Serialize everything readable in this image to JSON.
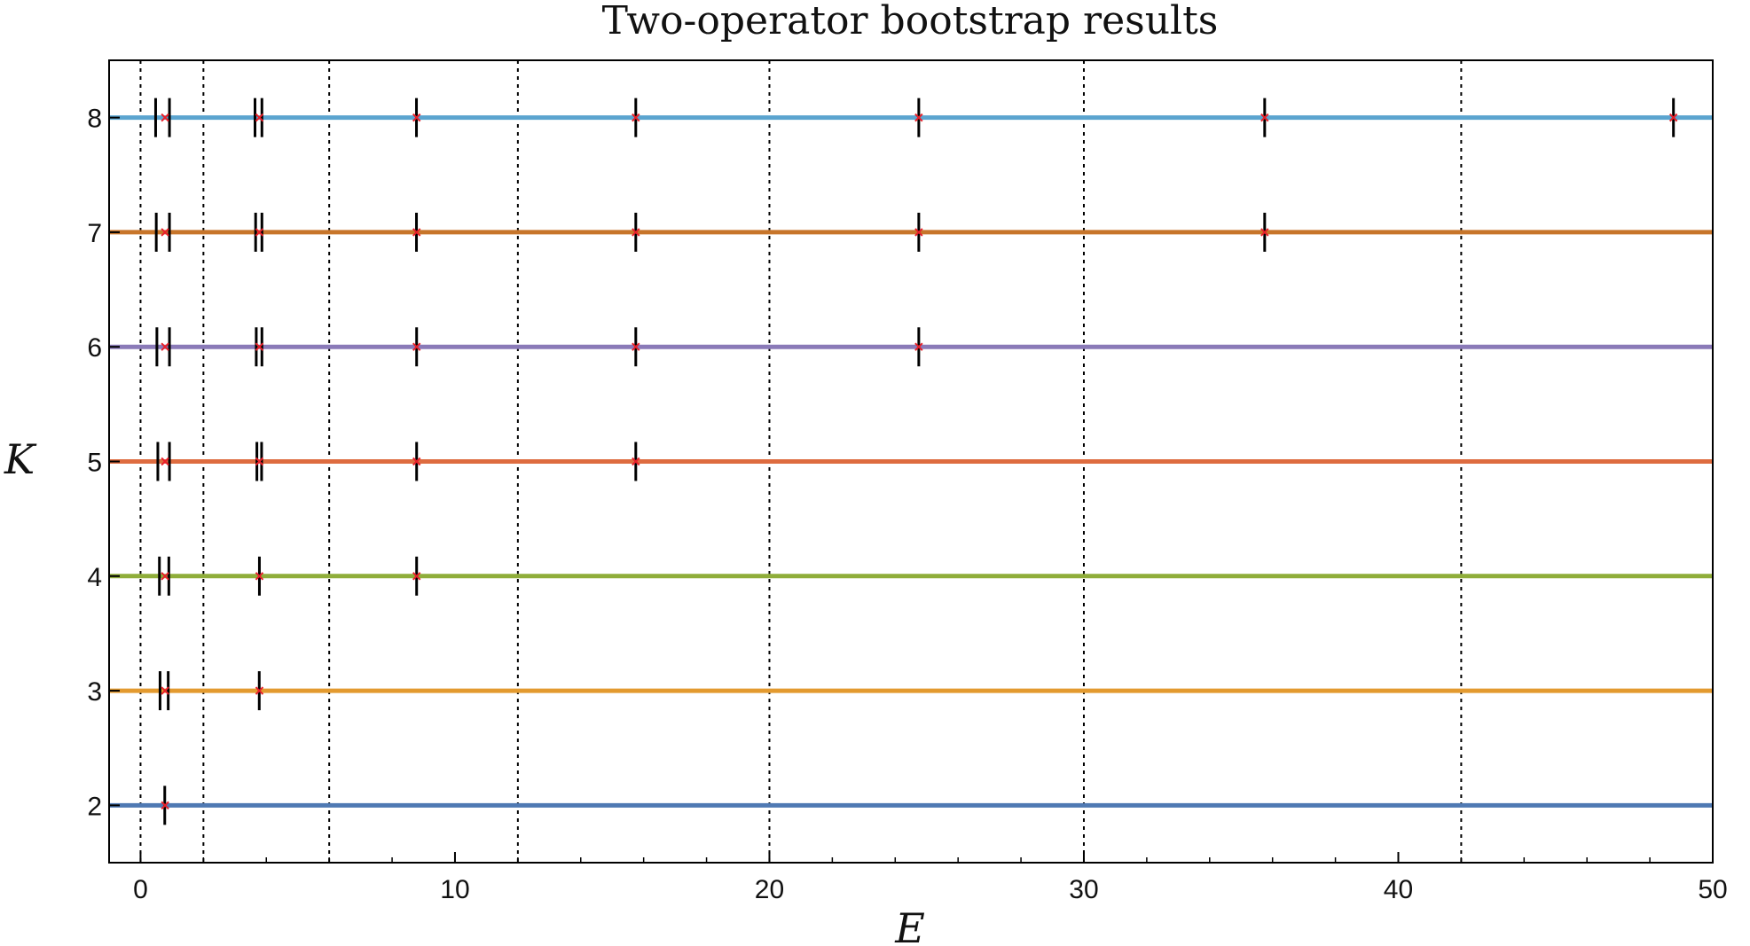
{
  "chart_data": {
    "type": "scatter",
    "title": "Two-operator bootstrap results",
    "xlabel": "E",
    "ylabel": "K",
    "xlim": [
      -1,
      50
    ],
    "ylim": [
      1.5,
      8.5
    ],
    "xticks": [
      0,
      10,
      20,
      30,
      40,
      50
    ],
    "yticks": [
      2,
      3,
      4,
      5,
      6,
      7,
      8
    ],
    "vlines": [
      0,
      2,
      6,
      12,
      20,
      30,
      42
    ],
    "grid": false,
    "legend": "none",
    "series": [
      {
        "k": 2,
        "color": "#4f79b3",
        "markers": [
          0.78
        ],
        "bounds": [
          [
            0.74,
            0.8
          ]
        ]
      },
      {
        "k": 3,
        "color": "#e39a2f",
        "markers": [
          0.78,
          3.78
        ],
        "bounds": [
          [
            0.62,
            0.88
          ],
          [
            3.76,
            3.79
          ]
        ]
      },
      {
        "k": 4,
        "color": "#8fad3a",
        "markers": [
          0.78,
          3.78,
          8.78
        ],
        "bounds": [
          [
            0.6,
            0.9
          ],
          [
            3.77,
            3.79
          ],
          [
            8.77,
            8.79
          ]
        ]
      },
      {
        "k": 5,
        "color": "#de6c40",
        "markers": [
          0.78,
          3.78,
          8.78,
          15.75
        ],
        "bounds": [
          [
            0.55,
            0.92
          ],
          [
            3.7,
            3.85
          ],
          [
            8.77,
            8.79
          ],
          [
            15.74,
            15.76
          ]
        ]
      },
      {
        "k": 6,
        "color": "#8a7ab8",
        "markers": [
          0.78,
          3.78,
          8.78,
          15.75,
          24.75
        ],
        "bounds": [
          [
            0.52,
            0.92
          ],
          [
            3.68,
            3.86
          ],
          [
            8.77,
            8.79
          ],
          [
            15.74,
            15.76
          ],
          [
            24.74,
            24.76
          ]
        ]
      },
      {
        "k": 7,
        "color": "#c7752a",
        "markers": [
          0.78,
          3.78,
          8.78,
          15.75,
          24.75,
          35.75
        ],
        "bounds": [
          [
            0.5,
            0.92
          ],
          [
            3.66,
            3.86
          ],
          [
            8.75,
            8.8
          ],
          [
            15.74,
            15.76
          ],
          [
            24.74,
            24.76
          ],
          [
            35.74,
            35.76
          ]
        ]
      },
      {
        "k": 8,
        "color": "#5ba4cf",
        "markers": [
          0.78,
          3.78,
          8.78,
          15.75,
          24.75,
          35.75,
          48.75
        ],
        "bounds": [
          [
            0.48,
            0.92
          ],
          [
            3.64,
            3.86
          ],
          [
            8.75,
            8.8
          ],
          [
            15.74,
            15.76
          ],
          [
            24.74,
            24.76
          ],
          [
            35.74,
            35.76
          ],
          [
            48.74,
            48.76
          ]
        ]
      }
    ],
    "marker_color": "#e8202a",
    "bound_color": "#000000"
  }
}
